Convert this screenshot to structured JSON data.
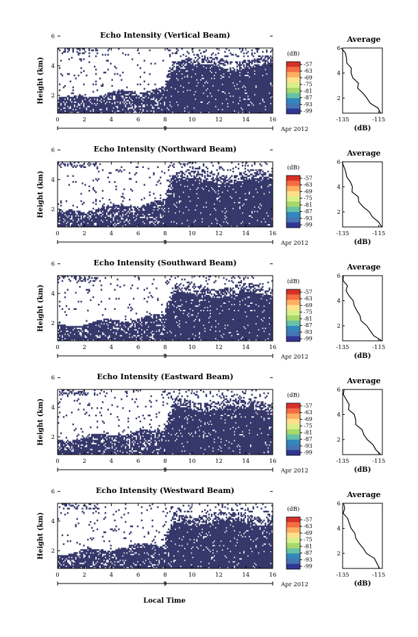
{
  "figure": {
    "xlabel": "Local Time",
    "colorbar_unit": "(dB)",
    "colorbar_ticks": [
      "-57",
      "-63",
      "-69",
      "-75",
      "-81",
      "-87",
      "-93",
      "-99"
    ],
    "colorbar_colors": [
      "#d73027",
      "#f46d43",
      "#fdae61",
      "#fee08b",
      "#d9ef8b",
      "#a6d96a",
      "#66c2a5",
      "#3288bd",
      "#4575b4",
      "#313695"
    ],
    "heatmap_color": "#36386b",
    "avg_title": "Average",
    "avg_xlabel": "(dB)",
    "date_label": "Apr 2012",
    "day_label": "9"
  },
  "chart_data": [
    {
      "type": "heatmap",
      "title": "Echo Intensity (Vertical Beam)",
      "xlabel": "",
      "ylabel": "Height (km)",
      "xlim": [
        0,
        16
      ],
      "ylim": [
        0.8,
        5.2
      ],
      "xticks": [
        0,
        2,
        4,
        6,
        8,
        10,
        12,
        14,
        16
      ],
      "yticks": [
        2,
        4,
        6
      ],
      "ytick_labels": [
        "2",
        "4",
        "6"
      ],
      "zlim": [
        -99,
        -57
      ],
      "avg_profile": {
        "xlim": [
          -135,
          -113
        ],
        "xticks": [
          -135,
          -115
        ],
        "ylim": [
          0.8,
          6
        ],
        "yticks": [
          2,
          4,
          6
        ],
        "height": [
          0.8,
          1.2,
          1.6,
          2.0,
          2.4,
          2.8,
          3.2,
          3.6,
          4.0,
          4.4,
          4.8,
          5.2,
          5.6,
          6.0
        ],
        "value": [
          -114,
          -116,
          -119,
          -122,
          -124,
          -126,
          -127,
          -129,
          -130,
          -131,
          -132,
          -133,
          -134,
          -135
        ]
      }
    },
    {
      "type": "heatmap",
      "title": "Echo Intensity (Northward Beam)",
      "xlabel": "",
      "ylabel": "Height (km)",
      "xlim": [
        0,
        16
      ],
      "ylim": [
        0.8,
        5.2
      ],
      "xticks": [
        0,
        2,
        4,
        6,
        8,
        10,
        12,
        14,
        16
      ],
      "yticks": [
        2,
        4,
        6
      ],
      "ytick_labels": [
        "2",
        "4",
        "6"
      ],
      "zlim": [
        -99,
        -57
      ],
      "avg_profile": {
        "xlim": [
          -135,
          -113
        ],
        "xticks": [
          -135,
          -115
        ],
        "ylim": [
          0.8,
          6
        ],
        "yticks": [
          2,
          4,
          6
        ],
        "height": [
          0.8,
          1.2,
          1.6,
          2.0,
          2.4,
          2.8,
          3.2,
          3.6,
          4.0,
          4.4,
          4.8,
          5.2,
          5.6,
          6.0
        ],
        "value": [
          -114,
          -115,
          -118,
          -121,
          -123,
          -126,
          -127,
          -129,
          -130,
          -131,
          -132,
          -134,
          -134,
          -135
        ]
      }
    },
    {
      "type": "heatmap",
      "title": "Echo Intensity (Southward Beam)",
      "xlabel": "",
      "ylabel": "Height (km)",
      "xlim": [
        0,
        16
      ],
      "ylim": [
        0.8,
        5.2
      ],
      "xticks": [
        0,
        2,
        4,
        6,
        8,
        10,
        12,
        14,
        16
      ],
      "yticks": [
        2,
        4,
        6
      ],
      "ytick_labels": [
        "2",
        "4",
        "6"
      ],
      "zlim": [
        -99,
        -57
      ],
      "avg_profile": {
        "xlim": [
          -135,
          -113
        ],
        "xticks": [
          -135,
          -115
        ],
        "ylim": [
          0.8,
          6
        ],
        "yticks": [
          2,
          4,
          6
        ],
        "height": [
          0.8,
          1.2,
          1.6,
          2.0,
          2.4,
          2.8,
          3.2,
          3.6,
          4.0,
          4.4,
          4.8,
          5.2,
          5.6,
          6.0
        ],
        "value": [
          -114,
          -117,
          -120,
          -122,
          -124,
          -126,
          -127,
          -128,
          -130,
          -131,
          -133,
          -133,
          -134,
          -135
        ]
      }
    },
    {
      "type": "heatmap",
      "title": "Echo Intensity (Eastward Beam)",
      "xlabel": "",
      "ylabel": "Height (km)",
      "xlim": [
        0,
        16
      ],
      "ylim": [
        0.8,
        5.2
      ],
      "xticks": [
        0,
        2,
        4,
        6,
        8,
        10,
        12,
        14,
        16
      ],
      "yticks": [
        2,
        4,
        6
      ],
      "ytick_labels": [
        "2",
        "4",
        "6"
      ],
      "zlim": [
        -99,
        -57
      ],
      "avg_profile": {
        "xlim": [
          -135,
          -113
        ],
        "xticks": [
          -135,
          -115
        ],
        "ylim": [
          0.8,
          6
        ],
        "yticks": [
          2,
          4,
          6
        ],
        "height": [
          0.8,
          1.2,
          1.6,
          2.0,
          2.4,
          2.8,
          3.2,
          3.6,
          4.0,
          4.4,
          4.8,
          5.2,
          5.6,
          6.0
        ],
        "value": [
          -114,
          -116,
          -119,
          -121,
          -123,
          -125,
          -127,
          -128,
          -129,
          -131,
          -132,
          -133,
          -134,
          -135
        ]
      }
    },
    {
      "type": "heatmap",
      "title": "Echo Intensity (Westward Beam)",
      "xlabel": "",
      "ylabel": "Height (km)",
      "xlim": [
        0,
        16
      ],
      "ylim": [
        0.8,
        5.2
      ],
      "xticks": [
        0,
        2,
        4,
        6,
        8,
        10,
        12,
        14,
        16
      ],
      "yticks": [
        2,
        4,
        6
      ],
      "ytick_labels": [
        "2",
        "4",
        "6"
      ],
      "zlim": [
        -99,
        -57
      ],
      "avg_profile": {
        "xlim": [
          -135,
          -113
        ],
        "xticks": [
          -135,
          -115
        ],
        "ylim": [
          0.8,
          6
        ],
        "yticks": [
          2,
          4,
          6
        ],
        "height": [
          0.8,
          1.2,
          1.6,
          2.0,
          2.4,
          2.8,
          3.2,
          3.6,
          4.0,
          4.4,
          4.8,
          5.2,
          5.6,
          6.0
        ],
        "value": [
          -114,
          -116,
          -118,
          -121,
          -124,
          -126,
          -127,
          -129,
          -130,
          -131,
          -133,
          -134,
          -134,
          -135
        ]
      }
    }
  ]
}
